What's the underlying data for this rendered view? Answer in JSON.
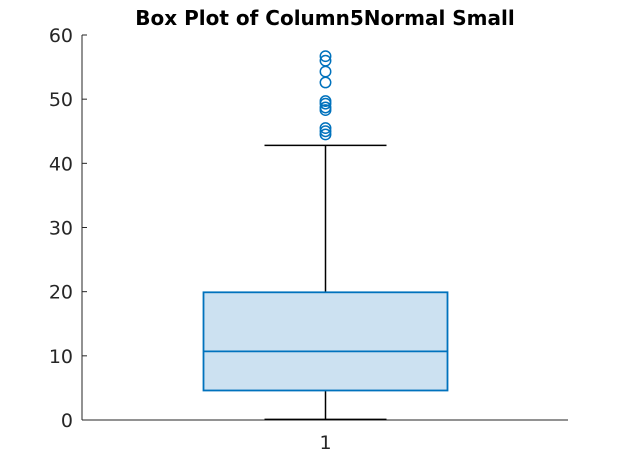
{
  "chart_data": {
    "type": "box",
    "title": "Box Plot of Column5Normal Small",
    "xlabel": "",
    "ylabel": "",
    "ylim": [
      0,
      60
    ],
    "yticks": [
      0,
      10,
      20,
      30,
      40,
      50,
      60
    ],
    "categories": [
      "1"
    ],
    "boxes": [
      {
        "category": "1",
        "min": 0.1,
        "q1": 4.6,
        "median": 10.7,
        "q3": 19.9,
        "max": 42.8,
        "outliers": [
          44.5,
          45.0,
          45.5,
          48.3,
          48.7,
          49.3,
          49.7,
          52.6,
          54.3,
          56.0,
          56.7
        ]
      }
    ],
    "grid": false,
    "colors": {
      "box_stroke": "#0072BD",
      "box_fill": "#CCE1F1",
      "whisker": "#000000",
      "axis": "#262626"
    }
  }
}
